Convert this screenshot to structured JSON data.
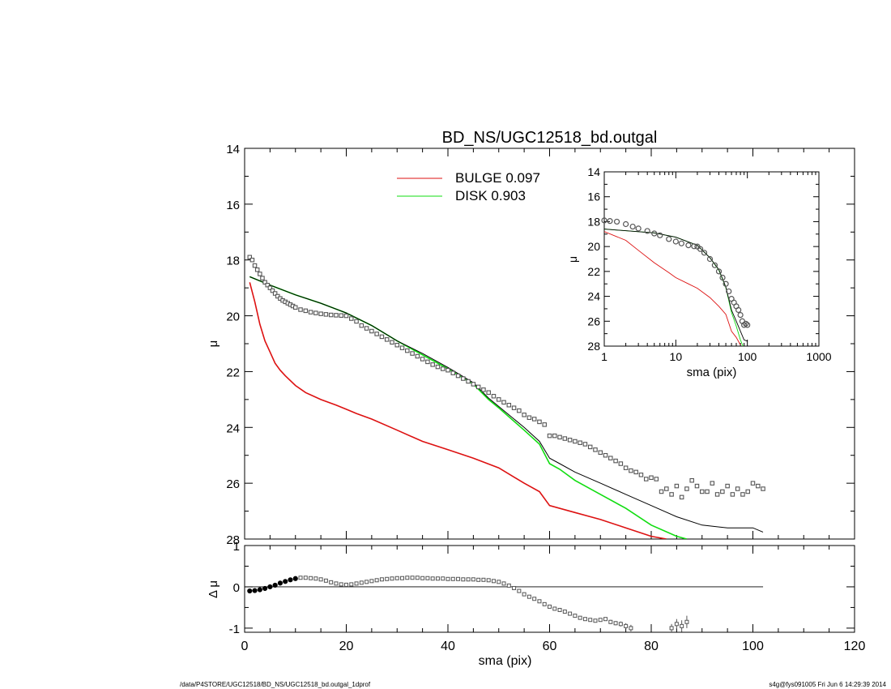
{
  "footer": {
    "left": "/data/P4STORE/UGC12518/BD_NS/UGC12518_bd.outgal_1dprof",
    "right": "s4g@fys091005  Fri Jun  6 14:29:39 2014"
  },
  "chart_data": [
    {
      "type": "scatter",
      "title": "BD_NS/UGC12518_bd.outgal",
      "xlabel": "",
      "ylabel": "μ",
      "xlim": [
        0,
        120
      ],
      "ylim": [
        28,
        14
      ],
      "yticks": [
        "14",
        "16",
        "18",
        "20",
        "22",
        "24",
        "26",
        "28"
      ],
      "legend": [
        {
          "label": "BULGE  0.097",
          "color": "#dd1111"
        },
        {
          "label": "DISK  0.903",
          "color": "#11dd11"
        }
      ],
      "legend_position": "top-center",
      "series": [
        {
          "name": "BULGE  0.097",
          "kind": "line",
          "color": "#dd1111",
          "x": [
            1,
            2,
            3,
            4,
            5,
            6,
            7,
            8,
            10,
            12,
            15,
            18,
            20,
            22,
            25,
            30,
            35,
            40,
            45,
            50,
            55,
            58,
            60,
            65,
            70,
            75,
            80,
            83
          ],
          "y": [
            18.8,
            19.5,
            20.3,
            20.9,
            21.3,
            21.7,
            21.95,
            22.15,
            22.5,
            22.75,
            23.0,
            23.2,
            23.35,
            23.5,
            23.7,
            24.1,
            24.5,
            24.8,
            25.1,
            25.45,
            26.0,
            26.3,
            26.8,
            27.05,
            27.3,
            27.6,
            27.9,
            28.0
          ]
        },
        {
          "name": "DISK  0.903",
          "kind": "line",
          "color": "#11dd11",
          "x": [
            1,
            5,
            10,
            15,
            20,
            25,
            30,
            35,
            40,
            45,
            48,
            50,
            55,
            58,
            60,
            62,
            65,
            70,
            75,
            80,
            85,
            87
          ],
          "y": [
            18.6,
            18.9,
            19.25,
            19.55,
            19.9,
            20.35,
            20.9,
            21.4,
            21.9,
            22.45,
            23.0,
            23.3,
            24.1,
            24.6,
            25.3,
            25.5,
            25.9,
            26.4,
            26.9,
            27.5,
            27.9,
            28.0
          ]
        },
        {
          "kind": "line",
          "color": "#000000",
          "x": [
            1,
            5,
            10,
            15,
            20,
            25,
            30,
            35,
            40,
            45,
            48,
            50,
            55,
            58,
            60,
            62,
            65,
            70,
            75,
            80,
            85,
            90,
            95,
            100,
            102
          ],
          "y": [
            18.6,
            18.9,
            19.25,
            19.55,
            19.9,
            20.35,
            20.9,
            21.35,
            21.85,
            22.4,
            22.95,
            23.25,
            24.0,
            24.5,
            25.1,
            25.3,
            25.6,
            26.0,
            26.4,
            26.8,
            27.2,
            27.5,
            27.6,
            27.6,
            27.75
          ]
        },
        {
          "kind": "points",
          "color": "#555555",
          "x": [
            1,
            1.5,
            2,
            2.5,
            3,
            3.5,
            4,
            4.5,
            5,
            5.5,
            6,
            6.5,
            7,
            7.5,
            8,
            8.5,
            9,
            9.5,
            10,
            11,
            12,
            13,
            14,
            15,
            16,
            17,
            18,
            19,
            20,
            21,
            22,
            23,
            24,
            25,
            26,
            27,
            28,
            29,
            30,
            31,
            32,
            33,
            34,
            35,
            36,
            37,
            38,
            39,
            40,
            41,
            42,
            43,
            44,
            45,
            46,
            47,
            48,
            49,
            50,
            51,
            52,
            53,
            54,
            55,
            56,
            57,
            58,
            59,
            60,
            61,
            62,
            63,
            64,
            65,
            66,
            67,
            68,
            69,
            70,
            71,
            72,
            73,
            74,
            75,
            76,
            77,
            78,
            79,
            80,
            81,
            82,
            83,
            84,
            85,
            86,
            87,
            88,
            89,
            90,
            91,
            92,
            93,
            94,
            95,
            96,
            97,
            98,
            99,
            100,
            101,
            102
          ],
          "y": [
            17.9,
            18.0,
            18.2,
            18.35,
            18.5,
            18.65,
            18.8,
            18.9,
            19.0,
            19.1,
            19.2,
            19.3,
            19.38,
            19.45,
            19.5,
            19.55,
            19.6,
            19.65,
            19.7,
            19.78,
            19.82,
            19.87,
            19.9,
            19.93,
            19.95,
            19.97,
            19.98,
            19.99,
            20.0,
            20.1,
            20.2,
            20.35,
            20.45,
            20.55,
            20.65,
            20.75,
            20.85,
            20.95,
            21.05,
            21.15,
            21.25,
            21.35,
            21.45,
            21.55,
            21.65,
            21.75,
            21.83,
            21.9,
            21.95,
            22.05,
            22.15,
            22.25,
            22.35,
            22.45,
            22.55,
            22.65,
            22.75,
            22.88,
            23.0,
            23.1,
            23.2,
            23.3,
            23.4,
            23.55,
            23.65,
            23.7,
            23.8,
            23.9,
            24.3,
            24.3,
            24.35,
            24.4,
            24.45,
            24.5,
            24.55,
            24.6,
            24.7,
            24.8,
            24.9,
            25.0,
            25.1,
            25.2,
            25.3,
            25.45,
            25.55,
            25.6,
            25.7,
            25.85,
            25.8,
            25.85,
            26.3,
            26.2,
            26.4,
            26.1,
            26.5,
            26.2,
            25.9,
            26.1,
            26.3,
            26.3,
            26.0,
            26.4,
            26.3,
            26.1,
            26.4,
            26.2,
            26.4,
            26.3,
            26.0,
            26.1,
            26.2
          ]
        }
      ]
    },
    {
      "type": "scatter",
      "title": "",
      "xlabel": "sma (pix)",
      "ylabel": "μ",
      "xscale": "log",
      "xlim": [
        1,
        1000
      ],
      "ylim": [
        28,
        14
      ],
      "xticks": [
        "1",
        "10",
        "100",
        "1000"
      ],
      "yticks": [
        "14",
        "16",
        "18",
        "20",
        "22",
        "24",
        "26",
        "28"
      ],
      "series": [
        {
          "kind": "points",
          "color": "#555555",
          "x": [
            1,
            1.2,
            1.5,
            2,
            2.5,
            3,
            4,
            5,
            6,
            8,
            10,
            12,
            15,
            18,
            20,
            22,
            25,
            30,
            35,
            40,
            45,
            50,
            55,
            60,
            65,
            70,
            75,
            80,
            85,
            90,
            95,
            100
          ],
          "y": [
            17.9,
            17.95,
            18.0,
            18.2,
            18.4,
            18.55,
            18.75,
            18.95,
            19.1,
            19.4,
            19.6,
            19.75,
            19.9,
            19.98,
            20.0,
            20.2,
            20.5,
            21.0,
            21.5,
            22.0,
            22.5,
            23.0,
            23.6,
            24.2,
            24.5,
            24.8,
            25.1,
            25.5,
            26.0,
            26.3,
            26.2,
            26.3
          ]
        },
        {
          "kind": "line",
          "color": "#dd1111",
          "x": [
            1,
            2,
            3,
            5,
            8,
            10,
            15,
            20,
            30,
            40,
            50,
            60,
            70,
            80
          ],
          "y": [
            18.8,
            19.5,
            20.3,
            21.3,
            22.1,
            22.5,
            23.0,
            23.35,
            24.1,
            24.8,
            25.45,
            26.8,
            27.3,
            27.9
          ]
        },
        {
          "kind": "line",
          "color": "#11dd11",
          "x": [
            1,
            5,
            10,
            20,
            30,
            40,
            50,
            60,
            70,
            80,
            87
          ],
          "y": [
            18.6,
            18.9,
            19.25,
            19.9,
            20.9,
            21.9,
            23.3,
            25.3,
            26.4,
            27.5,
            28.0
          ]
        },
        {
          "kind": "line",
          "color": "#000000",
          "x": [
            1,
            5,
            10,
            20,
            30,
            40,
            50,
            60,
            70,
            80,
            90,
            100
          ],
          "y": [
            18.6,
            18.9,
            19.25,
            19.9,
            20.9,
            21.85,
            23.25,
            25.1,
            26.0,
            26.8,
            27.5,
            27.6
          ]
        }
      ]
    },
    {
      "type": "scatter",
      "title": "",
      "xlabel": "sma (pix)",
      "ylabel": "Δ μ",
      "xlim": [
        0,
        120
      ],
      "ylim": [
        -1.1,
        1.0
      ],
      "xticks": [
        "0",
        "20",
        "40",
        "60",
        "80",
        "100",
        "120"
      ],
      "yticks": [
        "1",
        "0",
        "-1"
      ],
      "zero_line_to_x": 102,
      "series": [
        {
          "kind": "points",
          "color": "#555555",
          "x": [
            1,
            2,
            3,
            4,
            5,
            6,
            7,
            8,
            9,
            10,
            11,
            12,
            13,
            14,
            15,
            16,
            17,
            18,
            19,
            20,
            21,
            22,
            23,
            24,
            25,
            26,
            27,
            28,
            29,
            30,
            31,
            32,
            33,
            34,
            35,
            36,
            37,
            38,
            39,
            40,
            41,
            42,
            43,
            44,
            45,
            46,
            47,
            48,
            49,
            50,
            51,
            52,
            53,
            54,
            55,
            56,
            57,
            58,
            59,
            60,
            61,
            62,
            63,
            64,
            65,
            66,
            67,
            68,
            69,
            70,
            71,
            72,
            73,
            74,
            75,
            76,
            84,
            85,
            86,
            87
          ],
          "y": [
            -0.1,
            -0.09,
            -0.07,
            -0.04,
            0.0,
            0.04,
            0.09,
            0.13,
            0.17,
            0.2,
            0.22,
            0.22,
            0.21,
            0.2,
            0.18,
            0.15,
            0.11,
            0.08,
            0.06,
            0.05,
            0.06,
            0.08,
            0.1,
            0.12,
            0.14,
            0.16,
            0.18,
            0.19,
            0.2,
            0.21,
            0.21,
            0.22,
            0.22,
            0.22,
            0.21,
            0.21,
            0.2,
            0.2,
            0.2,
            0.19,
            0.19,
            0.19,
            0.18,
            0.18,
            0.18,
            0.17,
            0.17,
            0.16,
            0.14,
            0.12,
            0.08,
            0.03,
            -0.03,
            -0.1,
            -0.18,
            -0.24,
            -0.29,
            -0.35,
            -0.42,
            -0.48,
            -0.53,
            -0.56,
            -0.6,
            -0.65,
            -0.7,
            -0.75,
            -0.78,
            -0.8,
            -0.82,
            -0.8,
            -0.78,
            -0.85,
            -0.88,
            -0.9,
            -0.95,
            -1.0,
            -1.0,
            -0.9,
            -0.95,
            -0.85
          ],
          "err": [
            0,
            0,
            0,
            0,
            0,
            0,
            0,
            0,
            0,
            0,
            0,
            0,
            0,
            0,
            0,
            0,
            0,
            0,
            0,
            0,
            0,
            0,
            0,
            0,
            0,
            0,
            0,
            0,
            0,
            0,
            0,
            0,
            0,
            0,
            0,
            0,
            0,
            0,
            0,
            0,
            0,
            0,
            0,
            0,
            0,
            0,
            0,
            0,
            0,
            0,
            0,
            0,
            0,
            0,
            0,
            0,
            0,
            0,
            0,
            0,
            0,
            0,
            0,
            0,
            0,
            0,
            0,
            0,
            0,
            0,
            0.04,
            0.05,
            0.05,
            0.06,
            0.07,
            0.08,
            0.1,
            0.12,
            0.14,
            0.15
          ]
        }
      ]
    }
  ]
}
